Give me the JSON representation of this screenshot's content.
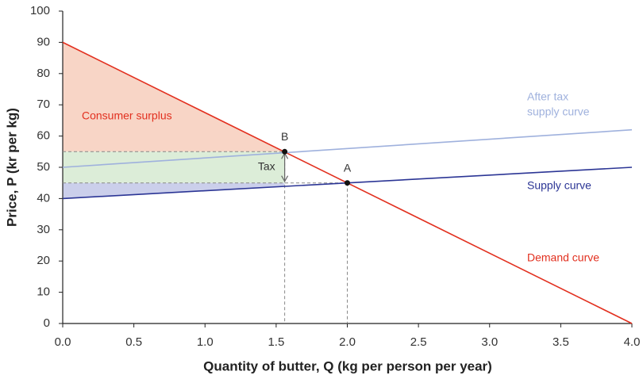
{
  "chart_data": {
    "type": "line",
    "x_label": "Quantity of butter, Q (kg per person per year)",
    "y_label": "Price, P (kr per kg)",
    "xlim": [
      0,
      4
    ],
    "ylim": [
      0,
      100
    ],
    "xticks": [
      {
        "value": 0,
        "label": "0.0"
      },
      0.5,
      {
        "value": 1,
        "label": "1.0"
      },
      1.5,
      {
        "value": 2,
        "label": "2.0"
      },
      2.5,
      {
        "value": 3,
        "label": "3.0"
      },
      3.5,
      {
        "value": 4,
        "label": "4.0"
      }
    ],
    "yticks": [
      0,
      10,
      20,
      30,
      40,
      50,
      60,
      70,
      80,
      90,
      100
    ],
    "series": [
      {
        "name": "Demand curve",
        "color": "#e2301f",
        "x": [
          0,
          4
        ],
        "y": [
          90,
          0
        ]
      },
      {
        "name": "Supply curve",
        "color": "#2b3595",
        "x": [
          0,
          4
        ],
        "y": [
          40,
          50
        ]
      },
      {
        "name": "After tax supply curve",
        "label": [
          "After tax",
          "supply curve"
        ],
        "color": "#9fb1dd",
        "x": [
          0,
          4
        ],
        "y": [
          50,
          62
        ]
      }
    ],
    "points": [
      {
        "label": "B",
        "x": 1.56,
        "y": 55
      },
      {
        "label": "A",
        "x": 2,
        "y": 45
      }
    ],
    "areas": {
      "consumer_surplus": "Consumer surplus",
      "tax": "Tax"
    }
  }
}
